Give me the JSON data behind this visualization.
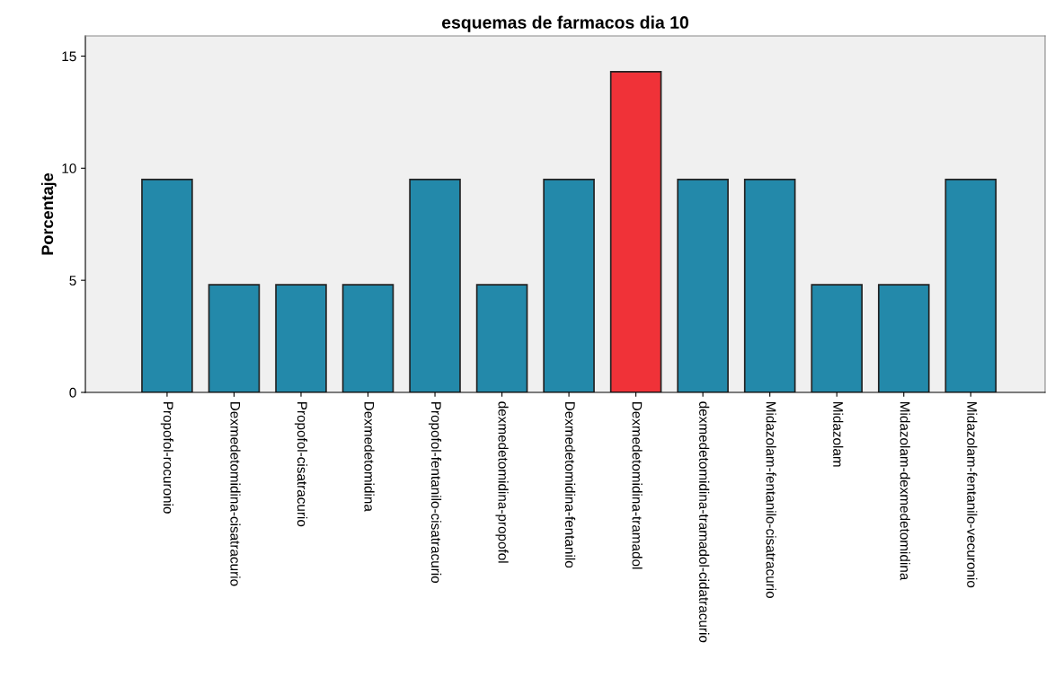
{
  "chart_data": {
    "type": "bar",
    "title": "esquemas de farmacos dia 10",
    "ylabel": "Porcentaje",
    "categories": [
      "Propofol-rocuronio",
      "Dexmedetomidina-cisatracurio",
      "Propofol-cisatracurio",
      "Dexmedetomidina",
      "Propofol-fentanilo-cisatracurio",
      "dexmedetomidina-propofol",
      "Dexmedetomidina-fentanilo",
      "Dexmedetomidina-tramadol",
      "dexmedetomidina-tramadol-cidatracurio",
      "Midazolam-fentanilo-cisatracurio",
      "Midazolam",
      "Midazolam-dexmedetomidina",
      "Midazolam-fentanilo-vecuronio"
    ],
    "values": [
      9.5,
      4.8,
      4.8,
      4.8,
      9.5,
      4.8,
      9.5,
      14.3,
      9.5,
      9.5,
      4.8,
      4.8,
      9.5
    ],
    "colors": [
      "#2389aa",
      "#2389aa",
      "#2389aa",
      "#2389aa",
      "#2389aa",
      "#2389aa",
      "#2389aa",
      "#f03238",
      "#2389aa",
      "#2389aa",
      "#2389aa",
      "#2389aa",
      "#2389aa"
    ],
    "ylim": [
      0,
      15.9
    ],
    "yticks": [
      0,
      5,
      10,
      15
    ],
    "grid": false,
    "legend": false
  }
}
